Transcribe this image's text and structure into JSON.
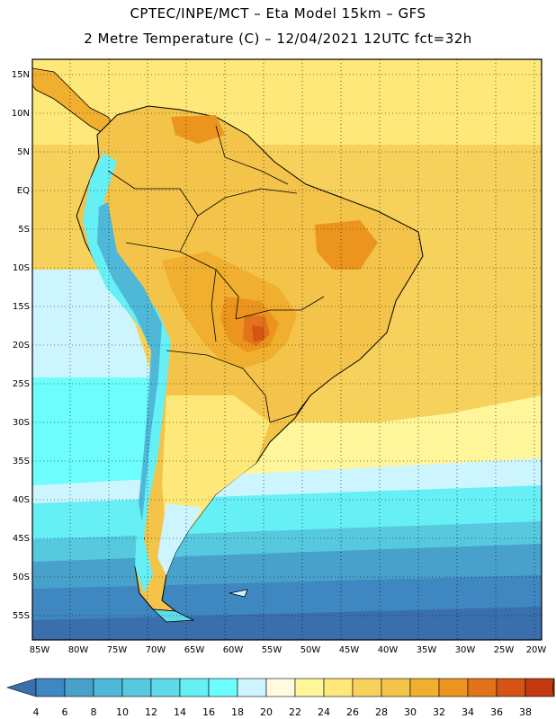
{
  "header": {
    "line1": "CPTEC/INPE/MCT –  Eta Model 15km – GFS",
    "line2": "2 Metre Temperature (C) – 12/04/2021 12UTC fct=32h"
  },
  "axes": {
    "lat_labels": [
      "15N",
      "10N",
      "5N",
      "EQ",
      "5S",
      "10S",
      "15S",
      "20S",
      "25S",
      "30S",
      "35S",
      "40S",
      "45S",
      "50S",
      "55S"
    ],
    "lon_labels": [
      "85W",
      "80W",
      "75W",
      "70W",
      "65W",
      "60W",
      "55W",
      "50W",
      "45W",
      "40W",
      "35W",
      "30W",
      "25W",
      "20W"
    ]
  },
  "colorbar": {
    "labels": [
      "4",
      "6",
      "8",
      "10",
      "12",
      "14",
      "16",
      "18",
      "20",
      "22",
      "24",
      "26",
      "28",
      "30",
      "32",
      "34",
      "36",
      "38"
    ],
    "colors": [
      "#3a6fae",
      "#3f87c0",
      "#47a1cb",
      "#4fb8d8",
      "#57c9df",
      "#5fdbe8",
      "#66f0f5",
      "#6dfdfd",
      "#ccf5ff",
      "#fffae0",
      "#fff59a",
      "#fde879",
      "#f6d25c",
      "#f3c34a",
      "#f0af2e",
      "#ec951e",
      "#e2731a",
      "#d55315",
      "#c33a10",
      "#b22b0c"
    ]
  }
}
